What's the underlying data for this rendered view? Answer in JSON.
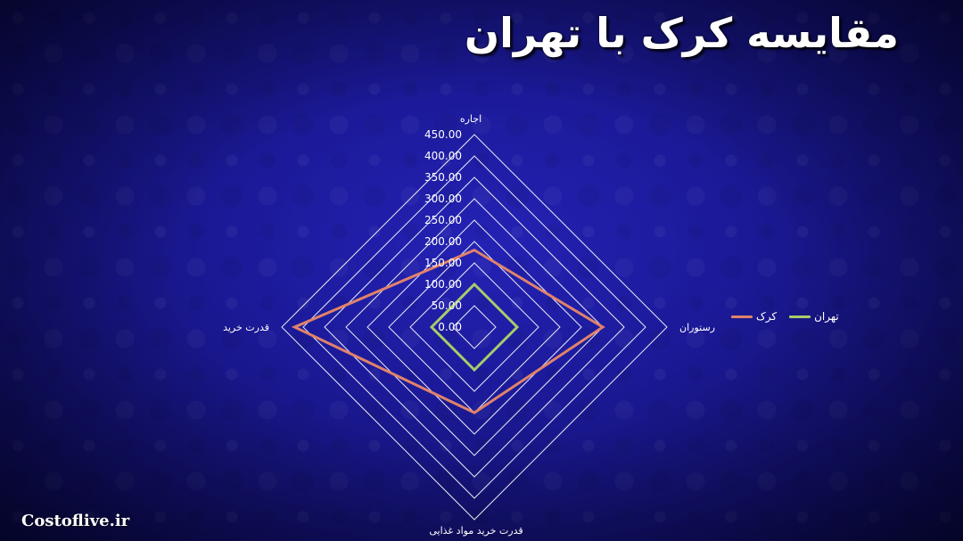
{
  "title": "مقایسه کرک با تهران",
  "watermark": "Costoflive.ir",
  "colors": {
    "grid": "#ffffff",
    "series_karak": "#e0826a",
    "series_tehran": "#a8cc6a"
  },
  "legend": {
    "items": [
      {
        "label": "کرک",
        "color": "#e0826a"
      },
      {
        "label": "تهران",
        "color": "#a8cc6a"
      }
    ]
  },
  "chart_data": {
    "type": "radar",
    "categories": [
      "اجاره",
      "رستوران",
      "قدرت خرید مواد غذایی",
      "قدرت خرید"
    ],
    "tick_labels": [
      "0.00",
      "50.00",
      "100.00",
      "150.00",
      "200.00",
      "250.00",
      "300.00",
      "350.00",
      "400.00",
      "450.00"
    ],
    "ylim": [
      0,
      450
    ],
    "series": [
      {
        "name": "کرک",
        "values": [
          180,
          300,
          200,
          420
        ]
      },
      {
        "name": "تهران",
        "values": [
          100,
          100,
          100,
          100
        ]
      }
    ],
    "legend_position": "right",
    "grid": true
  }
}
